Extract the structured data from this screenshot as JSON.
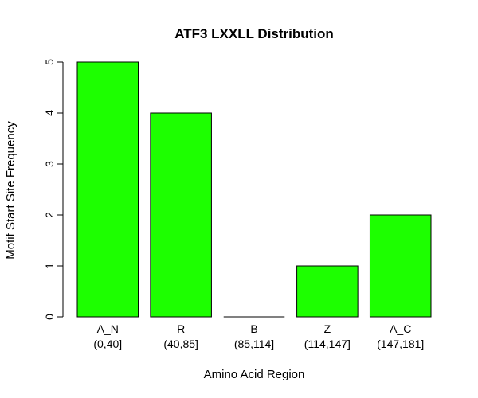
{
  "chart_data": {
    "type": "bar",
    "title": "ATF3 LXXLL Distribution",
    "xlabel": "Amino Acid Region",
    "ylabel": "Motif Start Site Frequency",
    "categories": [
      "A_N",
      "R",
      "B",
      "Z",
      "A_C"
    ],
    "category_ranges": [
      "(0,40]",
      "(40,85]",
      "(85,114]",
      "(114,147]",
      "(147,181]"
    ],
    "values": [
      5,
      4,
      0,
      1,
      2
    ],
    "ylim": [
      0,
      5
    ],
    "yticks": [
      0,
      1,
      2,
      3,
      4,
      5
    ],
    "bar_color": "#1dff00",
    "grid": false,
    "legend": "none"
  }
}
